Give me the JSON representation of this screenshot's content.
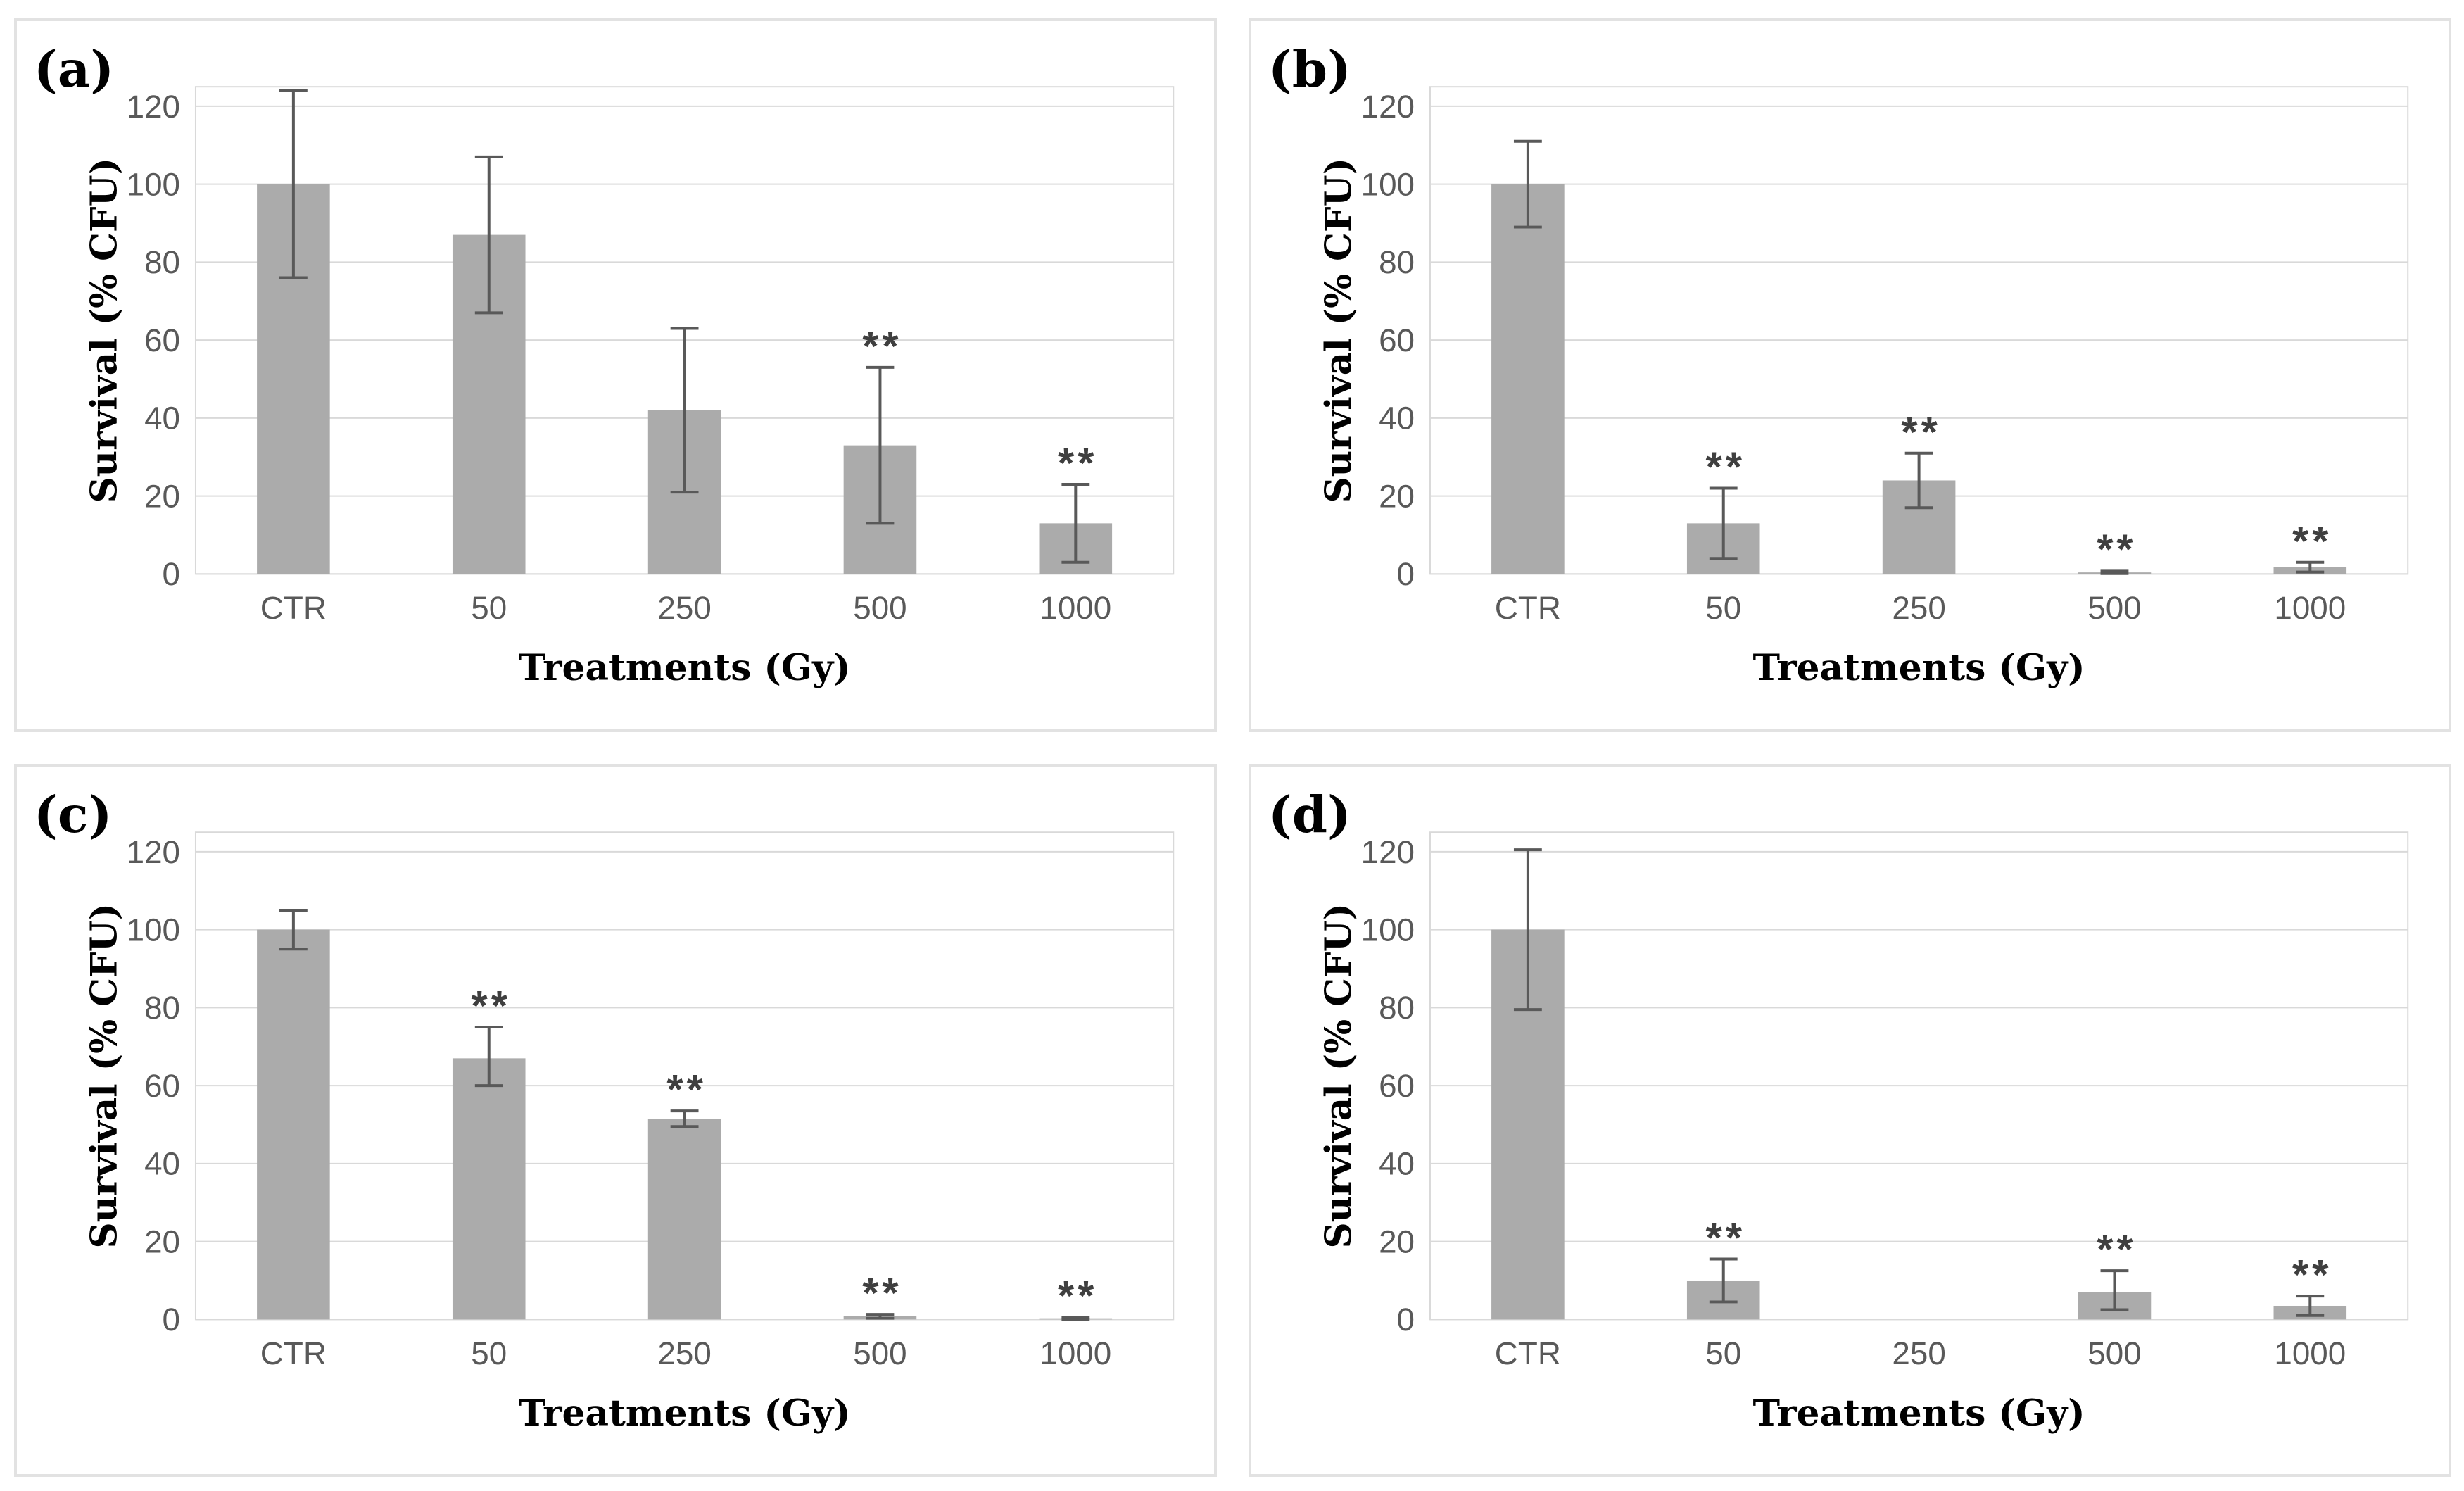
{
  "figure": {
    "background": "#ffffff",
    "panel_border_color": "#e2e2e2",
    "bar_color": "#ababab",
    "grid_color": "#d9d9d9",
    "axis_line_color": "#d9d9d9",
    "error_bar_color": "#595959",
    "tick_label_color": "#595959",
    "title_color": "#000000",
    "sig_color": "#3f3f3f"
  },
  "chart_data": [
    {
      "panel_label": "(a)",
      "type": "bar",
      "categories": [
        "CTR",
        "50",
        "250",
        "500",
        "1000"
      ],
      "values": [
        100,
        87,
        42,
        33,
        13
      ],
      "error_low": [
        76,
        67,
        21,
        13,
        3
      ],
      "error_high": [
        124,
        107,
        63,
        53,
        23
      ],
      "significance": [
        "",
        "",
        "",
        "**",
        "**"
      ],
      "title": "",
      "xlabel": "Treatments (Gy)",
      "ylabel": "Survival (% CFU)",
      "ylim": [
        0,
        125
      ],
      "yticks": [
        0,
        20,
        40,
        60,
        80,
        100,
        120
      ],
      "grid": true,
      "legend": null
    },
    {
      "panel_label": "(b)",
      "type": "bar",
      "categories": [
        "CTR",
        "50",
        "250",
        "500",
        "1000"
      ],
      "values": [
        100,
        13,
        24,
        0.4,
        1.8
      ],
      "error_low": [
        89,
        4,
        17,
        0.1,
        0.5
      ],
      "error_high": [
        111,
        22,
        31,
        0.9,
        3
      ],
      "significance": [
        "",
        "**",
        "**",
        "**",
        "**"
      ],
      "title": "",
      "xlabel": "Treatments (Gy)",
      "ylabel": "Survival (% CFU)",
      "ylim": [
        0,
        125
      ],
      "yticks": [
        0,
        20,
        40,
        60,
        80,
        100,
        120
      ],
      "grid": true,
      "legend": null
    },
    {
      "panel_label": "(c)",
      "type": "bar",
      "categories": [
        "CTR",
        "50",
        "250",
        "500",
        "1000"
      ],
      "values": [
        100,
        67,
        51.5,
        0.8,
        0.3
      ],
      "error_low": [
        95,
        60,
        49.5,
        0.3,
        0.05
      ],
      "error_high": [
        105,
        75,
        53.5,
        1.3,
        0.6
      ],
      "significance": [
        "",
        "**",
        "**",
        "**",
        "**"
      ],
      "title": "",
      "xlabel": "Treatments (Gy)",
      "ylabel": "Survival (% CFU)",
      "ylim": [
        0,
        125
      ],
      "yticks": [
        0,
        20,
        40,
        60,
        80,
        100,
        120
      ],
      "grid": true,
      "legend": null
    },
    {
      "panel_label": "(d)",
      "type": "bar",
      "categories": [
        "CTR",
        "50",
        "250",
        "500",
        "1000"
      ],
      "values": [
        100,
        10,
        0,
        7,
        3.5
      ],
      "error_low": [
        79.5,
        4.5,
        0,
        2.5,
        1
      ],
      "error_high": [
        120.5,
        15.5,
        0,
        12.5,
        6
      ],
      "significance": [
        "",
        "**",
        "",
        "**",
        "**"
      ],
      "title": "",
      "xlabel": "Treatments (Gy)",
      "ylabel": "Survival (% CFU)",
      "ylim": [
        0,
        125
      ],
      "yticks": [
        0,
        20,
        40,
        60,
        80,
        100,
        120
      ],
      "grid": true,
      "legend": null
    }
  ]
}
